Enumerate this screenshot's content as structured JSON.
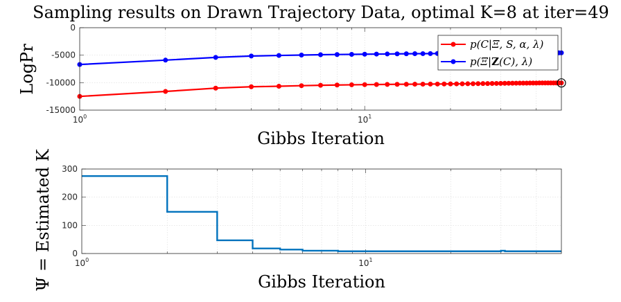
{
  "chart_data": [
    {
      "type": "line",
      "title": "Sampling results on Drawn Trajectory Data, optimal K=8 at iter=49",
      "xlabel": "Gibbs Iteration",
      "ylabel": "LogPr",
      "xscale": "log",
      "xlim": [
        1,
        49
      ],
      "ylim": [
        -15000,
        0
      ],
      "yticks": [
        "0",
        "-5000",
        "-10000",
        "-15000"
      ],
      "xtick_labels": [
        {
          "base": "10",
          "exp": "0",
          "value": 1
        },
        {
          "base": "10",
          "exp": "1",
          "value": 10
        }
      ],
      "grid": true,
      "legend_position": "top-right",
      "x": [
        1,
        2,
        3,
        4,
        5,
        6,
        7,
        8,
        9,
        10,
        11,
        12,
        13,
        14,
        15,
        16,
        17,
        18,
        19,
        20,
        21,
        22,
        23,
        24,
        25,
        26,
        27,
        28,
        29,
        30,
        31,
        32,
        33,
        34,
        35,
        36,
        37,
        38,
        39,
        40,
        41,
        42,
        43,
        44,
        45,
        46,
        47,
        48,
        49
      ],
      "series": [
        {
          "name": "p(C|Ξ,S,α,λ)",
          "color": "#ff0000",
          "values": [
            -12500,
            -11600,
            -11000,
            -10750,
            -10650,
            -10550,
            -10480,
            -10430,
            -10390,
            -10360,
            -10340,
            -10320,
            -10300,
            -10290,
            -10280,
            -10270,
            -10260,
            -10250,
            -10240,
            -10230,
            -10220,
            -10210,
            -10200,
            -10190,
            -10180,
            -10170,
            -10160,
            -10150,
            -10140,
            -10130,
            -10120,
            -10110,
            -10100,
            -10095,
            -10090,
            -10085,
            -10080,
            -10075,
            -10070,
            -10065,
            -10060,
            -10058,
            -10056,
            -10054,
            -10052,
            -10050,
            -10048,
            -10046,
            -10045
          ]
        },
        {
          "name": "p(Ξ|Z(C),λ)",
          "color": "#0000ff",
          "values": [
            -6700,
            -5900,
            -5400,
            -5150,
            -5050,
            -4980,
            -4920,
            -4880,
            -4850,
            -4820,
            -4800,
            -4780,
            -4760,
            -4745,
            -4730,
            -4720,
            -4710,
            -4700,
            -4690,
            -4680,
            -4670,
            -4660,
            -4650,
            -4645,
            -4640,
            -4635,
            -4630,
            -4625,
            -4620,
            -4615,
            -4610,
            -4605,
            -4600,
            -4598,
            -4596,
            -4594,
            -4592,
            -4590,
            -4588,
            -4586,
            -4584,
            -4582,
            -4580,
            -4578,
            -4576,
            -4574,
            -4572,
            -4570,
            -4570
          ]
        }
      ],
      "highlight_point": {
        "x": 49,
        "y": -10045
      },
      "legend_labels": {
        "red": {
          "pre": "p(C|Ξ, S, α, λ)"
        },
        "blue": {
          "pre": "p(Ξ|",
          "bold": "Z",
          "post": "(C), λ)"
        }
      }
    },
    {
      "type": "line",
      "step": true,
      "xlabel": "Gibbs Iteration",
      "ylabel": "Ψ = Estimated K",
      "xscale": "log",
      "xlim": [
        1,
        49
      ],
      "ylim": [
        0,
        300
      ],
      "yticks": [
        "0",
        "100",
        "200",
        "300"
      ],
      "xtick_labels": [
        {
          "base": "10",
          "exp": "0",
          "value": 1
        },
        {
          "base": "10",
          "exp": "1",
          "value": 10
        }
      ],
      "grid": true,
      "series": [
        {
          "color": "#0072bd",
          "x": [
            1,
            2,
            3,
            4,
            5,
            6,
            8,
            10,
            20,
            30,
            31,
            49
          ],
          "values": [
            275,
            148,
            47,
            18,
            14,
            10,
            8,
            8,
            8,
            10,
            8,
            8
          ]
        }
      ]
    }
  ]
}
